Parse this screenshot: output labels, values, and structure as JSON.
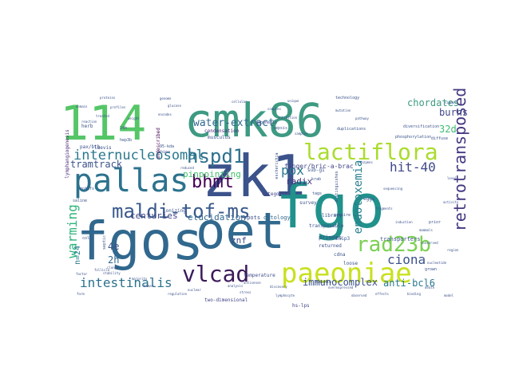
{
  "words": [
    {
      "text": "zk1",
      "color": "#3b528b"
    },
    {
      "text": "fgo",
      "color": "#21918c"
    },
    {
      "text": "oet",
      "color": "#31688e"
    },
    {
      "text": "fgos",
      "color": "#31688e"
    },
    {
      "text": "cmk86",
      "color": "#3e9a82"
    },
    {
      "text": "114",
      "color": "#55c667"
    },
    {
      "text": "pallas",
      "color": "#2c728e"
    },
    {
      "text": "paeoniae",
      "color": "#c9e020"
    },
    {
      "text": "lactiflora",
      "color": "#a9dc2d"
    },
    {
      "text": "vlcad",
      "color": "#3b1a5a"
    },
    {
      "text": "maldi-tof-ms",
      "color": "#38598c"
    },
    {
      "text": "hspd1",
      "color": "#2d708e"
    },
    {
      "text": "rad23b",
      "color": "#7ad151"
    },
    {
      "text": "bhmt",
      "color": "#440154"
    },
    {
      "text": "internucleosomal",
      "color": "#2a788e"
    },
    {
      "text": "intestinalis",
      "color": "#2c728e"
    },
    {
      "text": "retrotransposed",
      "color": "#453781"
    },
    {
      "text": "hit-40",
      "color": "#3f4889"
    },
    {
      "text": "ciona",
      "color": "#3b528b"
    },
    {
      "text": "pox",
      "color": "#2a788e"
    },
    {
      "text": "warming",
      "color": "#2fb47c"
    },
    {
      "text": "endotoxemia",
      "color": "#277f8e"
    },
    {
      "text": "water-extract",
      "color": "#31688e"
    },
    {
      "text": "tramtrack",
      "color": "#3b528b"
    },
    {
      "text": "chordates",
      "color": "#3e9a82"
    },
    {
      "text": "burns",
      "color": "#3f4889"
    },
    {
      "text": "32d",
      "color": "#3fbc73"
    },
    {
      "text": "immunocomplex",
      "color": "#3b528b"
    },
    {
      "text": "anti-bcl6",
      "color": "#2a788e"
    },
    {
      "text": "pinpointing",
      "color": "#46c06f"
    },
    {
      "text": "centuries",
      "color": "#414487"
    },
    {
      "text": "elucidation",
      "color": "#31688e"
    },
    {
      "text": "radix",
      "color": "#46337e"
    },
    {
      "text": "znf",
      "color": "#3e4a89"
    },
    {
      "text": "n=24",
      "color": "#2a788e"
    },
    {
      "text": "2h",
      "color": "#31688e"
    },
    {
      "text": "4e",
      "color": "#3b528b"
    },
    {
      "text": "finger/bric-a-brac",
      "color": "#414487"
    },
    {
      "text": "condensation",
      "color": "#482878"
    },
    {
      "text": "ionizing",
      "color": "#3b528b"
    },
    {
      "text": "spots",
      "color": "#3b528b"
    },
    {
      "text": "ontology",
      "color": "#31688e"
    },
    {
      "text": "library",
      "color": "#3b528b"
    },
    {
      "text": "primers",
      "color": "#3b528b"
    },
    {
      "text": "transporters",
      "color": "#3b528b"
    },
    {
      "text": "two-dimensional",
      "color": "#414487"
    },
    {
      "text": "hs-lps",
      "color": "#414487"
    },
    {
      "text": "categories",
      "color": "#414487"
    },
    {
      "text": "survey",
      "color": "#3b528b"
    },
    {
      "text": "returned",
      "color": "#3b528b"
    },
    {
      "text": "undescribed",
      "color": "#440154"
    },
    {
      "text": "temperature",
      "color": "#3e4a89"
    },
    {
      "text": "musculus",
      "color": "#3b528b"
    },
    {
      "text": "lymphangiogenesis",
      "color": "#482878"
    },
    {
      "text": "laevis",
      "color": "#3b528b"
    },
    {
      "text": "diversification",
      "color": "#3b528b"
    },
    {
      "text": "herb",
      "color": "#3b528b"
    },
    {
      "text": "pax/btb",
      "color": "#3b528b"
    },
    {
      "text": "24h",
      "color": "#3b528b"
    },
    {
      "text": "hep3b",
      "color": "#3b528b"
    },
    {
      "text": "95-kda",
      "color": "#3b528b"
    },
    {
      "text": "china",
      "color": "#3b528b"
    },
    {
      "text": "sub-g1",
      "color": "#3b528b"
    },
    {
      "text": "escherichia",
      "color": "#3b528b"
    },
    {
      "text": "transposable",
      "color": "#3b528b"
    },
    {
      "text": "bnip3",
      "color": "#3b528b"
    },
    {
      "text": "cdna",
      "color": "#3b528b"
    },
    {
      "text": "loose",
      "color": "#3b528b"
    },
    {
      "text": "coli",
      "color": "#3b528b"
    },
    {
      "text": "septic",
      "color": "#3b528b"
    },
    {
      "text": "technology",
      "color": "#3b528b"
    },
    {
      "text": "duplications",
      "color": "#3b528b"
    },
    {
      "text": "phosphorylation",
      "color": "#3b528b"
    },
    {
      "text": "eggs",
      "color": "#3b528b"
    },
    {
      "text": "motifs",
      "color": "#3b528b"
    },
    {
      "text": "saline",
      "color": "#3b528b"
    },
    {
      "text": "tags",
      "color": "#3b528b"
    },
    {
      "text": "krab",
      "color": "#3b528b"
    },
    {
      "text": "distinguishes",
      "color": "#3b528b"
    },
    {
      "text": "acquire",
      "color": "#3b528b"
    },
    {
      "text": "grown",
      "color": "#3b528b"
    },
    {
      "text": "nucleotide",
      "color": "#3b528b"
    },
    {
      "text": "diffuse",
      "color": "#3b528b"
    },
    {
      "text": "prior",
      "color": "#3b528b"
    },
    {
      "text": "reaction",
      "color": "#3b528b"
    },
    {
      "text": "treated",
      "color": "#3b528b"
    },
    {
      "text": "weight",
      "color": "#3b528b"
    },
    {
      "text": "death",
      "color": "#3b528b"
    },
    {
      "text": "evolution",
      "color": "#3b528b"
    },
    {
      "text": "overexpressed",
      "color": "#3b528b"
    },
    {
      "text": "cloned",
      "color": "#3b528b"
    },
    {
      "text": "stability",
      "color": "#3b528b"
    },
    {
      "text": "majority",
      "color": "#3b528b"
    },
    {
      "text": "antisense",
      "color": "#3b528b"
    },
    {
      "text": "discovery",
      "color": "#3b528b"
    },
    {
      "text": "encodes",
      "color": "#3b528b"
    },
    {
      "text": "glucose",
      "color": "#3b528b"
    },
    {
      "text": "reduced",
      "color": "#3b528b"
    },
    {
      "text": "mutation",
      "color": "#3b528b"
    },
    {
      "text": "pathway",
      "color": "#3b528b"
    },
    {
      "text": "sequencing",
      "color": "#3b528b"
    },
    {
      "text": "fragments",
      "color": "#3b528b"
    },
    {
      "text": "induction",
      "color": "#3b528b"
    },
    {
      "text": "mammals",
      "color": "#3b528b"
    },
    {
      "text": "conserved",
      "color": "#3b528b"
    },
    {
      "text": "cellular",
      "color": "#3b528b"
    },
    {
      "text": "dogenesis",
      "color": "#3b528b"
    },
    {
      "text": "genome",
      "color": "#3b528b"
    },
    {
      "text": "complex",
      "color": "#3b528b"
    },
    {
      "text": "inhibition",
      "color": "#3b528b"
    },
    {
      "text": "sepsis",
      "color": "#3b528b"
    },
    {
      "text": "proteins",
      "color": "#3b528b"
    },
    {
      "text": "follicle",
      "color": "#3b528b"
    },
    {
      "text": "profiles",
      "color": "#3b528b"
    },
    {
      "text": "unique",
      "color": "#3b528b"
    },
    {
      "text": "samples",
      "color": "#3b528b"
    },
    {
      "text": "enzymes",
      "color": "#3b528b"
    },
    {
      "text": "stress",
      "color": "#3b528b"
    },
    {
      "text": "lymphocyte",
      "color": "#3b528b"
    },
    {
      "text": "human",
      "color": "#3b528b"
    },
    {
      "text": "regulation",
      "color": "#3b528b"
    },
    {
      "text": "nuclear",
      "color": "#3b528b"
    },
    {
      "text": "analysis",
      "color": "#3b528b"
    },
    {
      "text": "effects",
      "color": "#3b528b"
    },
    {
      "text": "observed",
      "color": "#3b528b"
    },
    {
      "text": "binding",
      "color": "#3b528b"
    },
    {
      "text": "model",
      "color": "#3b528b"
    },
    {
      "text": "region",
      "color": "#3b528b"
    },
    {
      "text": "activity",
      "color": "#3b528b"
    },
    {
      "text": "level",
      "color": "#3b528b"
    },
    {
      "text": "signal",
      "color": "#3b528b"
    },
    {
      "text": "domain",
      "color": "#3b528b"
    },
    {
      "text": "factor",
      "color": "#3b528b"
    },
    {
      "text": "form",
      "color": "#3b528b"
    }
  ]
}
